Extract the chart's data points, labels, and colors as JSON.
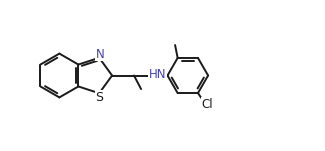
{
  "background": "#ffffff",
  "line_color": "#1a1a1a",
  "N_color": "#4444aa",
  "lw": 1.4,
  "fs": 8.5,
  "xlim": [
    -0.5,
    9.5
  ],
  "ylim": [
    -1.55,
    1.55
  ]
}
